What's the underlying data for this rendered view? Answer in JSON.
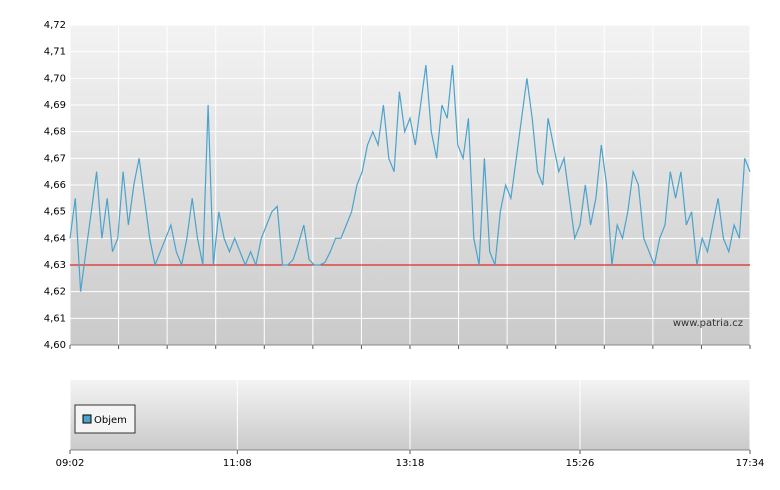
{
  "chart_data": {
    "type": "line",
    "x": [
      "09:02",
      "09:06",
      "09:10",
      "09:14",
      "09:18",
      "09:22",
      "09:26",
      "09:30",
      "09:34",
      "09:38",
      "09:42",
      "09:46",
      "09:50",
      "09:54",
      "09:58",
      "10:02",
      "10:06",
      "10:10",
      "10:14",
      "10:18",
      "10:22",
      "10:26",
      "10:30",
      "10:34",
      "10:38",
      "10:42",
      "10:46",
      "10:50",
      "10:54",
      "10:58",
      "11:02",
      "11:06",
      "11:10",
      "11:14",
      "11:18",
      "11:22",
      "11:26",
      "11:30",
      "11:34",
      "11:38",
      "11:42",
      "11:46",
      "11:50",
      "11:54",
      "11:58",
      "12:02",
      "12:06",
      "12:10",
      "12:14",
      "12:18",
      "12:22",
      "12:26",
      "12:30",
      "12:34",
      "12:38",
      "12:42",
      "12:46",
      "12:50",
      "12:54",
      "12:58",
      "13:02",
      "13:06",
      "13:10",
      "13:14",
      "13:18",
      "13:22",
      "13:26",
      "13:30",
      "13:34",
      "13:38",
      "13:42",
      "13:46",
      "13:50",
      "13:54",
      "13:58",
      "14:02",
      "14:06",
      "14:10",
      "14:14",
      "14:18",
      "14:22",
      "14:26",
      "14:30",
      "14:34",
      "14:38",
      "14:42",
      "14:46",
      "14:50",
      "14:54",
      "14:58",
      "15:02",
      "15:06",
      "15:10",
      "15:14",
      "15:18",
      "15:22",
      "15:26",
      "15:30",
      "15:34",
      "15:38",
      "15:42",
      "15:46",
      "15:50",
      "15:54",
      "15:58",
      "16:02",
      "16:06",
      "16:10",
      "16:14",
      "16:18",
      "16:22",
      "16:26",
      "16:30",
      "16:34",
      "16:38",
      "16:42",
      "16:46",
      "16:50",
      "16:54",
      "16:58",
      "17:02",
      "17:06",
      "17:10",
      "17:14",
      "17:18",
      "17:22",
      "17:26",
      "17:30",
      "17:34"
    ],
    "series": [
      {
        "color": "#4ba3cc",
        "values": [
          4.64,
          4.655,
          4.62,
          4.635,
          4.65,
          4.665,
          4.64,
          4.655,
          4.635,
          4.64,
          4.665,
          4.645,
          4.66,
          4.67,
          4.655,
          4.64,
          4.63,
          4.635,
          4.64,
          4.645,
          4.635,
          4.63,
          4.64,
          4.655,
          4.64,
          4.63,
          4.69,
          4.63,
          4.65,
          4.64,
          4.635,
          4.64,
          4.635,
          4.63,
          4.635,
          4.63,
          4.64,
          4.645,
          4.65,
          4.652,
          4.63,
          4.63,
          4.632,
          4.638,
          4.645,
          4.632,
          4.63,
          4.63,
          4.631,
          4.635,
          4.64,
          4.64,
          4.645,
          4.65,
          4.66,
          4.665,
          4.675,
          4.68,
          4.675,
          4.69,
          4.67,
          4.665,
          4.695,
          4.68,
          4.685,
          4.675,
          4.69,
          4.705,
          4.68,
          4.67,
          4.69,
          4.685,
          4.705,
          4.675,
          4.67,
          4.685,
          4.64,
          4.63,
          4.67,
          4.635,
          4.63,
          4.65,
          4.66,
          4.655,
          4.67,
          4.685,
          4.7,
          4.685,
          4.665,
          4.66,
          4.685,
          4.675,
          4.665,
          4.67,
          4.655,
          4.64,
          4.645,
          4.66,
          4.645,
          4.655,
          4.675,
          4.66,
          4.63,
          4.645,
          4.64,
          4.65,
          4.665,
          4.66,
          4.64,
          4.635,
          4.63,
          4.64,
          4.645,
          4.665,
          4.655,
          4.665,
          4.645,
          4.65,
          4.63,
          4.64,
          4.635,
          4.645,
          4.655,
          4.64,
          4.635,
          4.645,
          4.64,
          4.67,
          4.665
        ]
      }
    ],
    "reference_line": {
      "value": 4.63,
      "color": "#dd0000"
    },
    "xlim": [
      "09:02",
      "17:34"
    ],
    "xticks": [
      "09:02",
      "11:08",
      "13:18",
      "15:26",
      "17:34"
    ],
    "ylim": [
      4.6,
      4.72
    ],
    "yticks": [
      {
        "value": 4.6,
        "label": "4,60"
      },
      {
        "value": 4.61,
        "label": "4,61"
      },
      {
        "value": 4.62,
        "label": "4,62"
      },
      {
        "value": 4.63,
        "label": "4,63"
      },
      {
        "value": 4.64,
        "label": "4,64"
      },
      {
        "value": 4.65,
        "label": "4,65"
      },
      {
        "value": 4.66,
        "label": "4,66"
      },
      {
        "value": 4.67,
        "label": "4,67"
      },
      {
        "value": 4.68,
        "label": "4,68"
      },
      {
        "value": 4.69,
        "label": "4,69"
      },
      {
        "value": 4.7,
        "label": "4,70"
      },
      {
        "value": 4.71,
        "label": "4,71"
      },
      {
        "value": 4.72,
        "label": "4,72"
      }
    ],
    "grid": true,
    "watermark": "www.patria.cz",
    "volume_legend": {
      "label": "Objem",
      "color": "#4ba3cc"
    }
  }
}
